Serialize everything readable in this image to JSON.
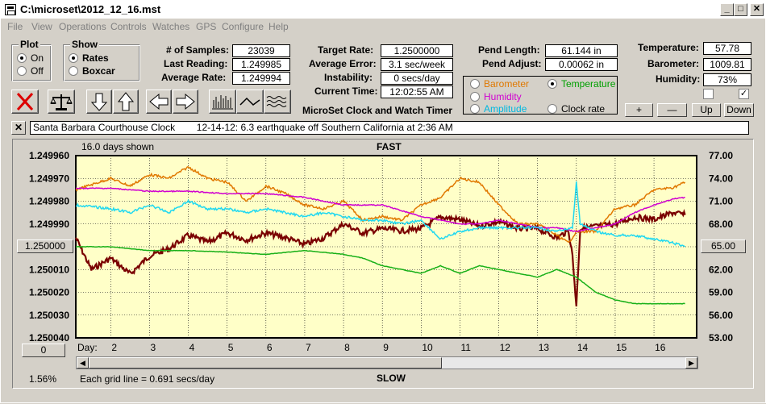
{
  "window": {
    "title": "C:\\microset\\2012_12_16.mst"
  },
  "menu": [
    "File",
    "View",
    "Operations",
    "Controls",
    "Watches",
    "GPS",
    "Configure",
    "Help"
  ],
  "plot_group": {
    "title": "Plot",
    "options": [
      "On",
      "Off"
    ],
    "selected": "On"
  },
  "show_group": {
    "title": "Show",
    "options": [
      "Rates",
      "Boxcar"
    ],
    "selected": "Rates"
  },
  "stats": {
    "samples_label": "# of Samples:",
    "samples": "23039",
    "last_label": "Last Reading:",
    "last": "1.249985",
    "avg_label": "Average Rate:",
    "avg": "1.249994",
    "target_label": "Target Rate:",
    "target": "1.2500000",
    "avgerr_label": "Average Error:",
    "avgerr": "3.1 sec/week",
    "instab_label": "Instability:",
    "instab": "0 secs/day",
    "time_label": "Current Time:",
    "time": "12:02:55 AM",
    "pendlen_label": "Pend Length:",
    "pendlen": "61.144 in",
    "pendadj_label": "Pend Adjust:",
    "pendadj": "0.00062 in",
    "temp_label": "Temperature:",
    "temp": "57.78",
    "baro_label": "Barometer:",
    "baro": "1009.81",
    "hum_label": "Humidity:",
    "hum": "73%"
  },
  "app_title": "MicroSet Clock and Watch Timer",
  "sensors": [
    {
      "label": "Barometer",
      "color": "#e07800",
      "selected": false
    },
    {
      "label": "Temperature",
      "color": "#00a000",
      "selected": true
    },
    {
      "label": "Humidity",
      "color": "#d000d0",
      "selected": false
    },
    {
      "label": "Amplitude",
      "color": "#00c8e0",
      "selected": false
    },
    {
      "label": "Clock rate",
      "color": "#000000",
      "selected": false
    }
  ],
  "adjust_buttons": [
    "+",
    "—",
    "Up",
    "Down"
  ],
  "checkboxes": [
    false,
    true
  ],
  "note": "Santa Barbara Courthouse Clock        12-14-12: 6.3 earthquake off Southern California at 2:36 AM",
  "chart_header": {
    "days_shown": "16.0 days shown",
    "fast": "FAST",
    "slow": "SLOW",
    "grid_note": "Each grid line = 0.691 secs/day",
    "percent": "1.56%",
    "left_btn": "1.250000",
    "left_btn2": "0",
    "right_btn": "65.00"
  },
  "chart_data": {
    "type": "line",
    "xlabel": "Day:",
    "x_ticks": [
      "2",
      "3",
      "4",
      "5",
      "6",
      "7",
      "8",
      "9",
      "10",
      "11",
      "12",
      "13",
      "14",
      "15",
      "16"
    ],
    "y_left_ticks": [
      "1.249960",
      "1.249970",
      "1.249980",
      "1.249990",
      "",
      "1.250010",
      "1.250020",
      "1.250030",
      "1.250040"
    ],
    "y_right_ticks": [
      "77.00",
      "74.00",
      "71.00",
      "68.00",
      "",
      "62.00",
      "59.00",
      "56.00",
      "53.00"
    ],
    "ylim_left": [
      1.24996,
      1.25004
    ],
    "ylim_right": [
      53,
      77
    ],
    "xlim": [
      1.1,
      17.1
    ],
    "series": [
      {
        "name": "Clock rate",
        "color": "#7a0000",
        "x": [
          1.1,
          1.5,
          2,
          2.5,
          3,
          3.5,
          4,
          4.5,
          5,
          5.5,
          6,
          6.5,
          7,
          7.5,
          8,
          8.5,
          9,
          9.5,
          10,
          10.5,
          11,
          11.5,
          12,
          12.5,
          13,
          13.5,
          13.8,
          13.9,
          14.0,
          14.1,
          14.5,
          15,
          15.5,
          16,
          16.5,
          16.8
        ],
        "y": [
          1.249996,
          1.25001,
          1.250005,
          1.250012,
          1.250004,
          1.250001,
          1.249995,
          1.249998,
          1.249994,
          1.249997,
          1.249994,
          1.249996,
          1.249999,
          1.249996,
          1.24999,
          1.249994,
          1.249992,
          1.249993,
          1.249992,
          1.249987,
          1.249988,
          1.249991,
          1.249989,
          1.249992,
          1.249992,
          1.249996,
          1.249993,
          1.250004,
          1.250026,
          1.249992,
          1.249991,
          1.24999,
          1.249987,
          1.249988,
          1.249985,
          1.249986
        ]
      },
      {
        "name": "Barometer",
        "color": "#e07800",
        "x": [
          1.1,
          2,
          2.5,
          3,
          3.5,
          4,
          4.5,
          5,
          5.5,
          6,
          6.5,
          7,
          7.5,
          8,
          8.5,
          9,
          9.5,
          10,
          10.5,
          11,
          11.5,
          12,
          12.5,
          13,
          13.5,
          13.8,
          14,
          14.5,
          15,
          15.5,
          16,
          16.5,
          16.8
        ],
        "y": [
          72.5,
          74.0,
          73.0,
          74.5,
          74.0,
          75.5,
          74.0,
          73.5,
          71.0,
          73.0,
          72.0,
          70.5,
          70.0,
          71.0,
          68.5,
          69.0,
          68.5,
          70.5,
          71.5,
          74.0,
          73.5,
          70.5,
          68.0,
          68.0,
          66.5,
          65.5,
          67.0,
          67.0,
          70.0,
          70.5,
          72.5,
          72.8,
          73.5
        ]
      },
      {
        "name": "Humidity",
        "color": "#d000d0",
        "x": [
          1.1,
          2,
          3,
          4,
          5,
          6,
          7,
          8,
          9,
          10,
          10.5,
          11,
          11.5,
          12,
          12.5,
          13,
          13.5,
          14,
          14.5,
          15,
          15.5,
          16,
          16.5,
          16.8
        ],
        "y": [
          72.7,
          72.7,
          72.3,
          72.3,
          72.0,
          72.0,
          71.5,
          70.5,
          70.5,
          69.0,
          68.5,
          68.0,
          68.0,
          68.5,
          68.0,
          67.5,
          67.5,
          67.0,
          67.5,
          68.0,
          69.5,
          70.5,
          71.3,
          71.5
        ]
      },
      {
        "name": "Amplitude",
        "color": "#20d8f0",
        "x": [
          1.1,
          2,
          2.5,
          3,
          3.5,
          4,
          4.5,
          5,
          5.5,
          6,
          6.5,
          7,
          7.5,
          8,
          8.5,
          9,
          9.5,
          10,
          10.5,
          11,
          11.5,
          12,
          12.5,
          13,
          13.5,
          13.9,
          14.0,
          14.1,
          14.5,
          15,
          15.5,
          16,
          16.5,
          16.8
        ],
        "y": [
          70.5,
          70.0,
          69.5,
          70.5,
          69.5,
          71.0,
          70.0,
          70.0,
          69.5,
          70.0,
          69.5,
          69.0,
          69.5,
          69.0,
          68.5,
          68.5,
          68.0,
          68.5,
          66.0,
          67.0,
          67.5,
          67.5,
          67.5,
          67.5,
          67.0,
          67.5,
          73.5,
          68.0,
          67.0,
          66.5,
          66.5,
          66.0,
          65.5,
          65.0
        ]
      },
      {
        "name": "Temperature",
        "color": "#18b018",
        "x": [
          1.1,
          2,
          3,
          4,
          5,
          6,
          7,
          8,
          8.5,
          9,
          9.5,
          10,
          10.5,
          11,
          11.5,
          12,
          12.5,
          13,
          13.5,
          14,
          14.5,
          15,
          15.5,
          16,
          16.5,
          16.8
        ],
        "y": [
          65.0,
          65.0,
          64.5,
          64.5,
          64.3,
          64.0,
          64.5,
          64.0,
          63.5,
          62.5,
          62.0,
          61.5,
          62.5,
          61.5,
          62.5,
          62.0,
          61.5,
          61.0,
          62.0,
          61.0,
          59.0,
          58.0,
          57.5,
          57.5,
          57.5,
          57.5
        ]
      }
    ]
  }
}
